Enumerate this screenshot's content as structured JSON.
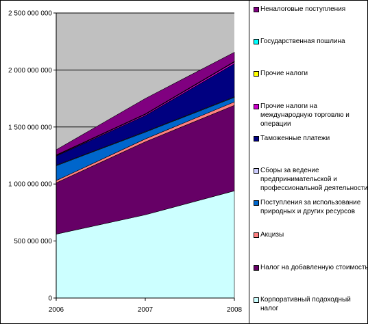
{
  "chart_data": {
    "type": "area",
    "stacked": true,
    "categories": [
      "2006",
      "2007",
      "2008"
    ],
    "yticks": [
      "0",
      "500 000 000",
      "1 000 000 000",
      "1 500 000 000",
      "2 000 000 000",
      "2 500 000 000"
    ],
    "ylim": [
      0,
      2500000000
    ],
    "grid": true,
    "plot_background": "#c0c0c0",
    "legend_placement": "right",
    "series": [
      {
        "name": "Корпоративный подоходный налог",
        "color": "#ccffff",
        "values": [
          560000000,
          730000000,
          940000000
        ]
      },
      {
        "name": "Налог на добавленную стоимость",
        "color": "#660066",
        "values": [
          450000000,
          640000000,
          750000000
        ]
      },
      {
        "name": "Акцизы",
        "color": "#ff8080",
        "values": [
          20000000,
          25000000,
          30000000
        ]
      },
      {
        "name": "Поступления за использование природных и других ресурсов",
        "color": "#0066cc",
        "values": [
          130000000,
          60000000,
          40000000
        ]
      },
      {
        "name": "Сборы за ведение предпринимательской и профессиональной деятельности",
        "color": "#ccccff",
        "values": [
          5000000,
          5000000,
          5000000
        ]
      },
      {
        "name": "Таможенные платежи",
        "color": "#000080",
        "values": [
          80000000,
          140000000,
          290000000
        ]
      },
      {
        "name": "Прочие налоги на международную торговлю и операции",
        "color": "#cc00cc",
        "values": [
          5000000,
          10000000,
          15000000
        ]
      },
      {
        "name": "Прочие налоги",
        "color": "#ffff00",
        "values": [
          2000000,
          2000000,
          2000000
        ]
      },
      {
        "name": "Государственная пошлина",
        "color": "#00ffff",
        "values": [
          3000000,
          3000000,
          3000000
        ]
      },
      {
        "name": "Неналоговые поступления",
        "color": "#800080",
        "values": [
          45000000,
          135000000,
          80000000
        ]
      }
    ]
  }
}
